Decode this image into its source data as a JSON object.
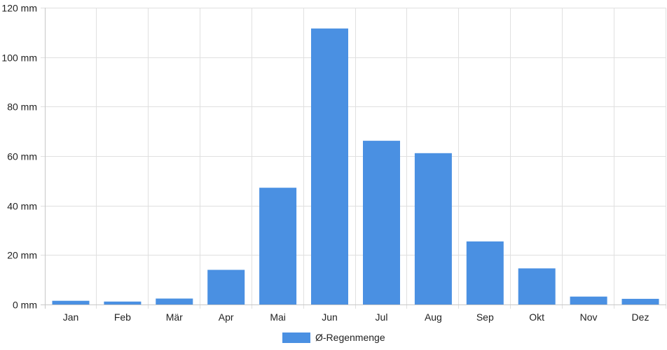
{
  "chart_data": {
    "type": "bar",
    "categories": [
      "Jan",
      "Feb",
      "Mär",
      "Apr",
      "Mai",
      "Jun",
      "Jul",
      "Aug",
      "Sep",
      "Okt",
      "Nov",
      "Dez"
    ],
    "series": [
      {
        "name": "Ø-Regenmenge",
        "values": [
          1.5,
          1.2,
          2.4,
          14.0,
          47.2,
          111.6,
          66.2,
          61.2,
          25.5,
          14.6,
          3.2,
          2.3
        ],
        "color": "#4a90e2"
      }
    ],
    "y_unit": "mm",
    "ylim": [
      0,
      120
    ],
    "y_ticks": [
      0,
      20,
      40,
      60,
      80,
      100,
      120
    ],
    "y_tick_labels": [
      "0 mm",
      "20 mm",
      "40 mm",
      "60 mm",
      "80 mm",
      "100 mm",
      "120 mm"
    ],
    "grid": true,
    "grid_color": "#e0e0e0",
    "axis_color": "#c8c8c8",
    "legend_position": "bottom-center"
  }
}
